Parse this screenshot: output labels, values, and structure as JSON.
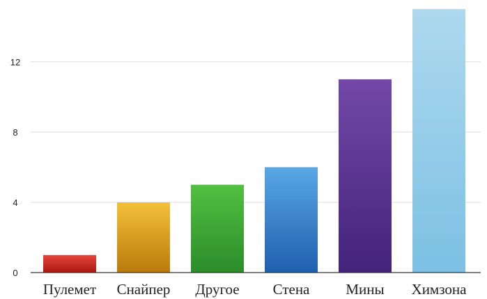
{
  "chart_data": {
    "type": "bar",
    "title": "",
    "xlabel": "",
    "ylabel": "",
    "categories": [
      "Пулемет",
      "Снайпер",
      "Другое",
      "Стена",
      "Мины",
      "Химзона"
    ],
    "values": [
      1,
      4,
      5,
      6,
      11,
      15
    ],
    "ylim": [
      0,
      15.2
    ],
    "yticks": [
      "0",
      "4",
      "8",
      "12"
    ],
    "grid": true,
    "legend": "none",
    "colors": [
      [
        "#e8453c",
        "#a8190f"
      ],
      [
        "#f4c13a",
        "#b87a0a"
      ],
      [
        "#52c041",
        "#2c8c2a"
      ],
      [
        "#5aa7e6",
        "#1e5fae"
      ],
      [
        "#7348a8",
        "#43237a"
      ],
      [
        "#aed9ef",
        "#7cc0e3"
      ]
    ]
  }
}
